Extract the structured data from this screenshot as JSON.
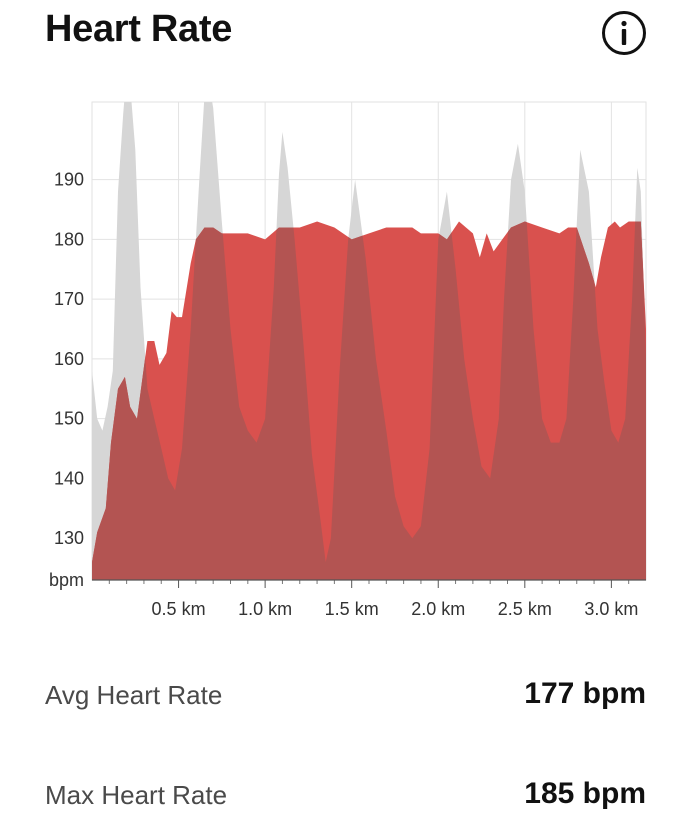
{
  "header": {
    "title": "Heart Rate",
    "info_icon": "info-icon"
  },
  "chart_data": {
    "type": "area",
    "xlabel": "",
    "ylabel": "bpm",
    "xlim": [
      0,
      3.2
    ],
    "ylim": [
      123,
      203
    ],
    "x_ticks": [
      0.5,
      1.0,
      1.5,
      2.0,
      2.5,
      3.0
    ],
    "x_tick_labels": [
      "0.5 km",
      "1.0 km",
      "1.5 km",
      "2.0 km",
      "2.5 km",
      "3.0 km"
    ],
    "y_ticks": [
      130,
      140,
      150,
      160,
      170,
      180,
      190
    ],
    "y_tick_labels": [
      "130",
      "140",
      "150",
      "160",
      "170",
      "180",
      "190"
    ],
    "y_unit_label": "bpm",
    "grid": true,
    "colors": {
      "heart_rate": "#d9514e",
      "elevation": "#d6d6d6",
      "overlap": "#b35452"
    },
    "series": [
      {
        "key": "heart_rate",
        "x": [
          0,
          0.03,
          0.08,
          0.11,
          0.15,
          0.19,
          0.22,
          0.26,
          0.32,
          0.36,
          0.39,
          0.43,
          0.46,
          0.49,
          0.52,
          0.57,
          0.6,
          0.65,
          0.7,
          0.75,
          0.8,
          0.9,
          1.0,
          1.08,
          1.2,
          1.3,
          1.4,
          1.45,
          1.5,
          1.6,
          1.7,
          1.8,
          1.85,
          1.9,
          1.95,
          2.0,
          2.05,
          2.12,
          2.16,
          2.2,
          2.24,
          2.28,
          2.32,
          2.37,
          2.42,
          2.5,
          2.6,
          2.7,
          2.75,
          2.8,
          2.87,
          2.91,
          2.94,
          2.98,
          3.02,
          3.05,
          3.1,
          3.14,
          3.17,
          3.2
        ],
        "y": [
          126,
          131,
          135,
          146,
          155,
          157,
          152,
          150,
          163,
          163,
          159,
          161,
          168,
          167,
          167,
          176,
          180,
          182,
          182,
          181,
          181,
          181,
          180,
          182,
          182,
          183,
          182,
          181,
          180,
          181,
          182,
          182,
          182,
          181,
          181,
          181,
          180,
          183,
          182,
          181,
          177,
          181,
          178,
          180,
          182,
          183,
          182,
          181,
          182,
          182,
          176,
          172,
          177,
          182,
          183,
          182,
          183,
          183,
          183,
          165
        ]
      },
      {
        "key": "elevation",
        "x": [
          0,
          0.03,
          0.06,
          0.09,
          0.12,
          0.15,
          0.18,
          0.2,
          0.22,
          0.25,
          0.28,
          0.32,
          0.36,
          0.4,
          0.44,
          0.48,
          0.52,
          0.57,
          0.62,
          0.66,
          0.7,
          0.75,
          0.8,
          0.85,
          0.9,
          0.95,
          1.0,
          1.05,
          1.08,
          1.1,
          1.13,
          1.17,
          1.22,
          1.27,
          1.32,
          1.35,
          1.38,
          1.43,
          1.48,
          1.52,
          1.58,
          1.64,
          1.7,
          1.75,
          1.8,
          1.85,
          1.9,
          1.95,
          2.0,
          2.05,
          2.1,
          2.15,
          2.2,
          2.25,
          2.3,
          2.35,
          2.38,
          2.42,
          2.46,
          2.5,
          2.55,
          2.6,
          2.65,
          2.7,
          2.74,
          2.78,
          2.82,
          2.87,
          2.92,
          2.96,
          3.0,
          3.04,
          3.08,
          3.12,
          3.15,
          3.17,
          3.2
        ],
        "y": [
          158,
          150,
          148,
          152,
          158,
          188,
          201,
          208,
          206,
          195,
          172,
          155,
          150,
          145,
          140,
          138,
          145,
          165,
          190,
          209,
          202,
          183,
          165,
          152,
          148,
          146,
          150,
          172,
          191,
          198,
          192,
          180,
          163,
          144,
          133,
          126,
          130,
          158,
          180,
          190,
          177,
          160,
          148,
          137,
          132,
          130,
          132,
          145,
          180,
          188,
          175,
          160,
          150,
          142,
          140,
          150,
          170,
          190,
          196,
          188,
          165,
          150,
          146,
          146,
          150,
          170,
          195,
          188,
          165,
          156,
          148,
          146,
          150,
          170,
          192,
          188,
          160
        ]
      }
    ]
  },
  "stats": [
    {
      "label": "Avg Heart Rate",
      "value": "177 bpm"
    },
    {
      "label": "Max Heart Rate",
      "value": "185 bpm"
    }
  ]
}
